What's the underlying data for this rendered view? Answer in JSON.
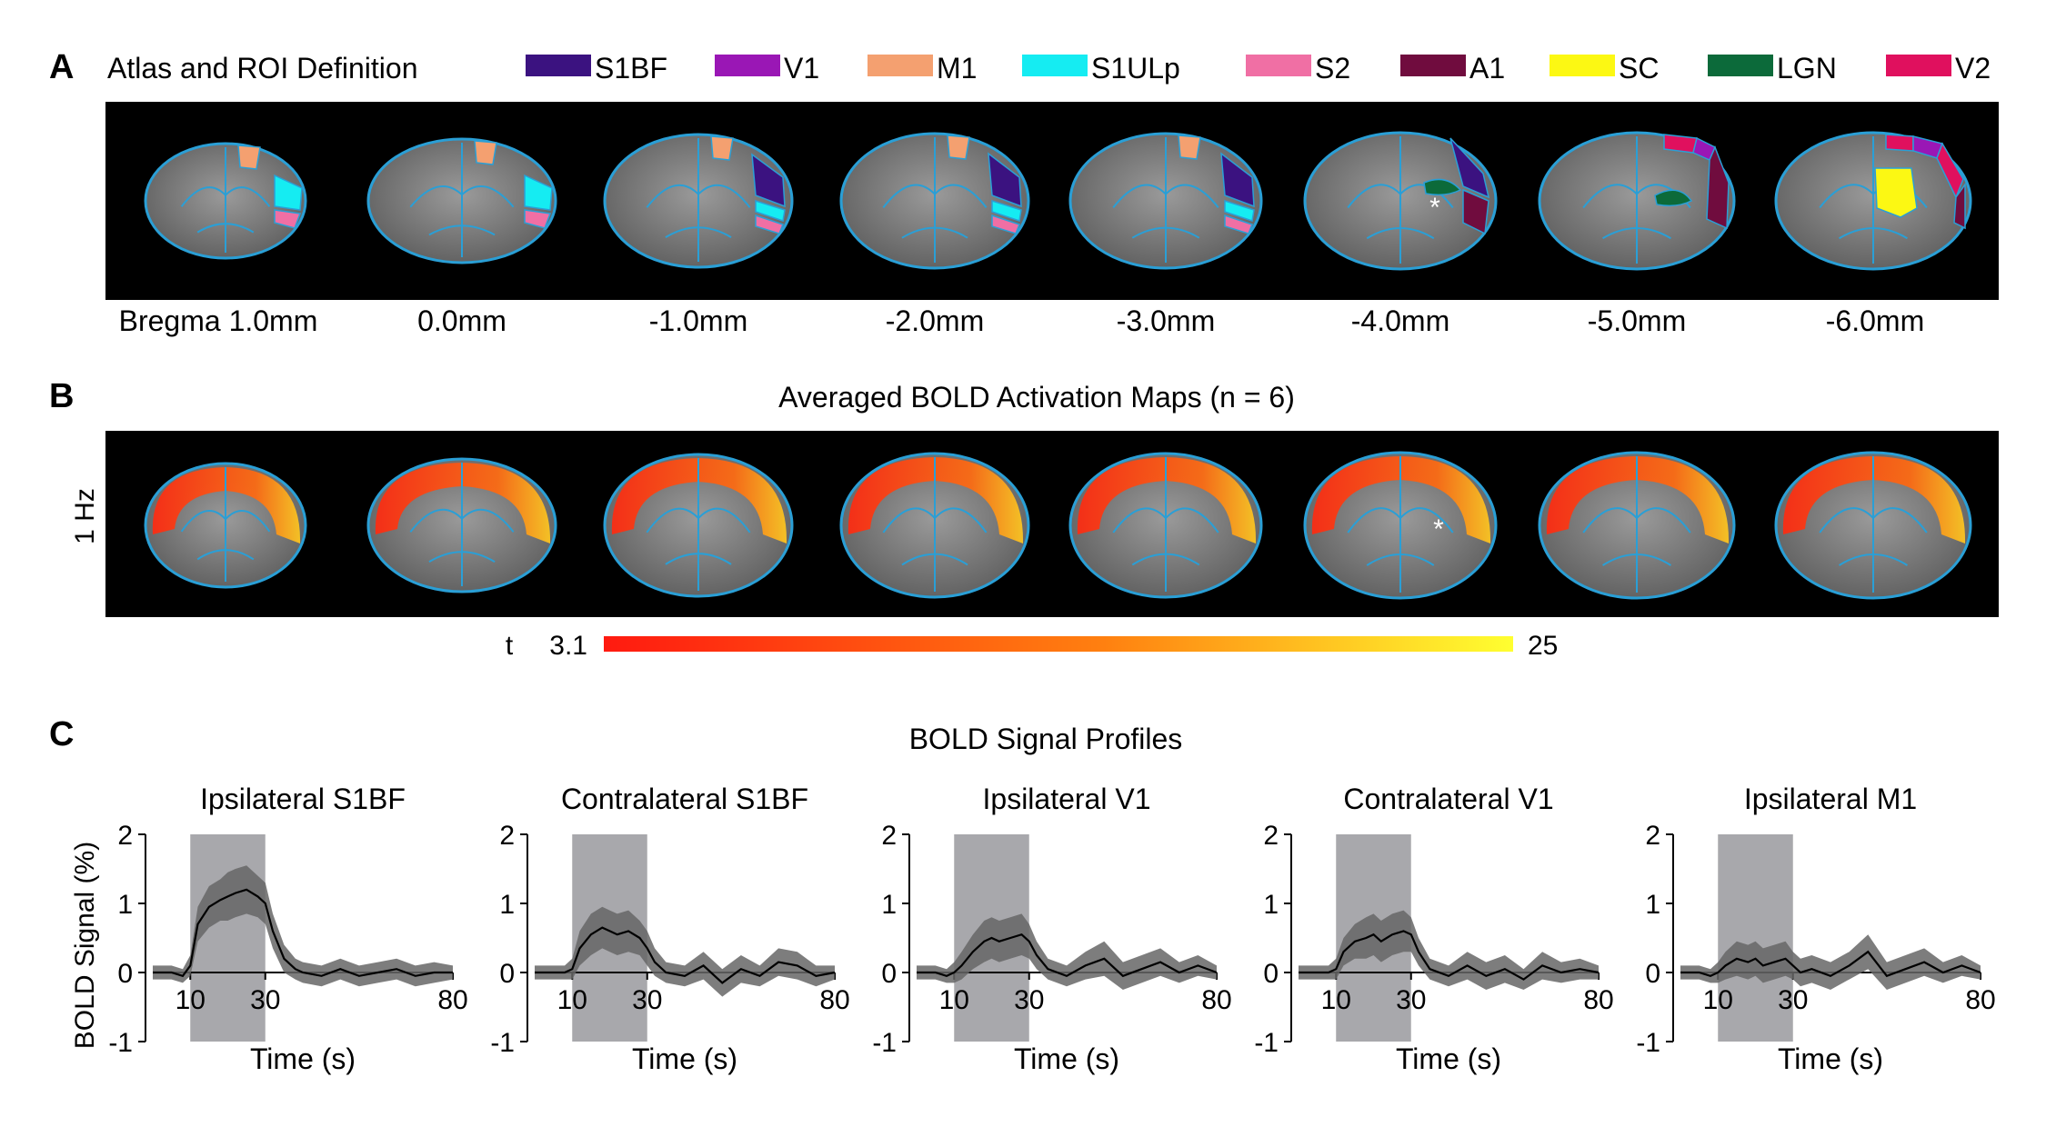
{
  "panel_a": {
    "letter": "A",
    "title": "Atlas and ROI Definition",
    "legend": [
      {
        "label": "S1BF",
        "color": "#3b1280"
      },
      {
        "label": "V1",
        "color": "#9a17b5"
      },
      {
        "label": "M1",
        "color": "#f4a070"
      },
      {
        "label": "S1ULp",
        "color": "#15ecf2"
      },
      {
        "label": "S2",
        "color": "#f06fa4"
      },
      {
        "label": "A1",
        "color": "#700c3e"
      },
      {
        "label": "SC",
        "color": "#fcf813"
      },
      {
        "label": "LGN",
        "color": "#0c6a3a"
      },
      {
        "label": "V2",
        "color": "#e0105e"
      }
    ],
    "slices": [
      {
        "label": "Bregma 1.0mm"
      },
      {
        "label": "0.0mm"
      },
      {
        "label": "-1.0mm"
      },
      {
        "label": "-2.0mm"
      },
      {
        "label": "-3.0mm"
      },
      {
        "label": "-4.0mm"
      },
      {
        "label": "-5.0mm"
      },
      {
        "label": "-6.0mm"
      }
    ],
    "asterisk": "*"
  },
  "panel_b": {
    "letter": "B",
    "title": "Averaged BOLD Activation Maps (n = 6)",
    "row_label": "1 Hz",
    "colorbar": {
      "label": "t",
      "min": "3.1",
      "max": "25",
      "color_low": "#ff1a10",
      "color_mid": "#ff8010",
      "color_high": "#ffff30"
    },
    "asterisk": "*"
  },
  "panel_c": {
    "letter": "C",
    "title": "BOLD Signal Profiles",
    "ylabel": "BOLD Signal (%)",
    "xlabel": "Time (s)",
    "stim_window": [
      10,
      30
    ],
    "xticks": [
      "10",
      "30",
      "80"
    ],
    "yticks": [
      "2",
      "1",
      "0",
      "-1"
    ],
    "colors": {
      "stim": "#a8a8ac",
      "sem": "#666666",
      "mean": "#000000"
    }
  },
  "chart_data": [
    {
      "type": "line",
      "title": "Ipsilateral S1BF",
      "xlabel": "Time (s)",
      "ylabel": "BOLD Signal (%)",
      "xlim": [
        0,
        80
      ],
      "ylim": [
        -1,
        2
      ],
      "x": [
        0,
        5,
        8,
        10,
        12,
        15,
        18,
        20,
        22,
        25,
        28,
        30,
        32,
        35,
        38,
        40,
        45,
        50,
        55,
        60,
        65,
        70,
        75,
        80
      ],
      "series": [
        {
          "name": "mean",
          "values": [
            0,
            0,
            -0.05,
            0.1,
            0.7,
            0.95,
            1.05,
            1.1,
            1.15,
            1.2,
            1.1,
            1.0,
            0.6,
            0.2,
            0.05,
            0,
            -0.05,
            0.05,
            -0.05,
            0,
            0.05,
            -0.05,
            0,
            0
          ]
        },
        {
          "name": "sem",
          "values": [
            0.1,
            0.1,
            0.1,
            0.15,
            0.25,
            0.3,
            0.3,
            0.35,
            0.35,
            0.35,
            0.3,
            0.3,
            0.25,
            0.2,
            0.15,
            0.15,
            0.15,
            0.15,
            0.15,
            0.15,
            0.15,
            0.15,
            0.15,
            0.1
          ]
        }
      ]
    },
    {
      "type": "line",
      "title": "Contralateral S1BF",
      "xlabel": "Time (s)",
      "ylabel": "BOLD Signal (%)",
      "xlim": [
        0,
        80
      ],
      "ylim": [
        -1,
        2
      ],
      "x": [
        0,
        5,
        8,
        10,
        12,
        15,
        18,
        20,
        22,
        25,
        28,
        30,
        32,
        35,
        40,
        45,
        50,
        55,
        60,
        65,
        70,
        75,
        80
      ],
      "series": [
        {
          "name": "mean",
          "values": [
            0,
            0,
            0,
            0.05,
            0.35,
            0.55,
            0.65,
            0.6,
            0.55,
            0.6,
            0.5,
            0.35,
            0.15,
            0,
            -0.05,
            0.1,
            -0.15,
            0.05,
            -0.05,
            0.15,
            0.1,
            -0.05,
            0
          ]
        },
        {
          "name": "sem",
          "values": [
            0.1,
            0.1,
            0.1,
            0.15,
            0.25,
            0.3,
            0.3,
            0.3,
            0.3,
            0.3,
            0.25,
            0.25,
            0.2,
            0.15,
            0.15,
            0.2,
            0.2,
            0.2,
            0.15,
            0.2,
            0.2,
            0.15,
            0.1
          ]
        }
      ]
    },
    {
      "type": "line",
      "title": "Ipsilateral V1",
      "xlabel": "Time (s)",
      "ylabel": "BOLD Signal (%)",
      "xlim": [
        0,
        80
      ],
      "ylim": [
        -1,
        2
      ],
      "x": [
        0,
        5,
        8,
        10,
        12,
        15,
        18,
        20,
        22,
        25,
        28,
        30,
        32,
        35,
        40,
        45,
        50,
        55,
        60,
        65,
        70,
        75,
        80
      ],
      "series": [
        {
          "name": "mean",
          "values": [
            0,
            0,
            -0.05,
            0,
            0.1,
            0.3,
            0.45,
            0.5,
            0.45,
            0.5,
            0.55,
            0.45,
            0.25,
            0.05,
            -0.05,
            0.1,
            0.2,
            -0.05,
            0.05,
            0.15,
            0,
            0.1,
            0
          ]
        },
        {
          "name": "sem",
          "values": [
            0.1,
            0.1,
            0.1,
            0.15,
            0.2,
            0.25,
            0.3,
            0.3,
            0.3,
            0.3,
            0.3,
            0.25,
            0.2,
            0.15,
            0.15,
            0.2,
            0.25,
            0.2,
            0.2,
            0.2,
            0.15,
            0.15,
            0.1
          ]
        }
      ]
    },
    {
      "type": "line",
      "title": "Contralateral V1",
      "xlabel": "Time (s)",
      "ylabel": "BOLD Signal (%)",
      "xlim": [
        0,
        80
      ],
      "ylim": [
        -1,
        2
      ],
      "x": [
        0,
        5,
        8,
        10,
        12,
        15,
        18,
        20,
        22,
        25,
        28,
        30,
        32,
        35,
        40,
        45,
        50,
        55,
        60,
        65,
        70,
        75,
        80
      ],
      "series": [
        {
          "name": "mean",
          "values": [
            0,
            0,
            0,
            0.05,
            0.3,
            0.45,
            0.5,
            0.55,
            0.45,
            0.55,
            0.6,
            0.55,
            0.3,
            0.05,
            -0.05,
            0.1,
            -0.05,
            0.05,
            -0.1,
            0.1,
            0,
            0.05,
            0
          ]
        },
        {
          "name": "sem",
          "values": [
            0.1,
            0.1,
            0.1,
            0.15,
            0.2,
            0.25,
            0.3,
            0.3,
            0.3,
            0.3,
            0.3,
            0.25,
            0.2,
            0.15,
            0.15,
            0.2,
            0.2,
            0.2,
            0.15,
            0.2,
            0.15,
            0.15,
            0.1
          ]
        }
      ]
    },
    {
      "type": "line",
      "title": "Ipsilateral M1",
      "xlabel": "Time (s)",
      "ylabel": "BOLD Signal (%)",
      "xlim": [
        0,
        80
      ],
      "ylim": [
        -1,
        2
      ],
      "x": [
        0,
        5,
        8,
        10,
        12,
        15,
        18,
        20,
        22,
        25,
        28,
        30,
        32,
        35,
        40,
        45,
        50,
        55,
        60,
        65,
        70,
        75,
        80
      ],
      "series": [
        {
          "name": "mean",
          "values": [
            0,
            0,
            -0.05,
            0,
            0.1,
            0.2,
            0.15,
            0.2,
            0.1,
            0.15,
            0.2,
            0.1,
            0,
            0.05,
            -0.05,
            0.1,
            0.3,
            -0.05,
            0.05,
            0.15,
            0,
            0.1,
            0
          ]
        },
        {
          "name": "sem",
          "values": [
            0.1,
            0.1,
            0.1,
            0.15,
            0.2,
            0.25,
            0.25,
            0.25,
            0.25,
            0.25,
            0.25,
            0.2,
            0.2,
            0.2,
            0.2,
            0.2,
            0.25,
            0.2,
            0.2,
            0.2,
            0.15,
            0.15,
            0.1
          ]
        }
      ]
    }
  ]
}
